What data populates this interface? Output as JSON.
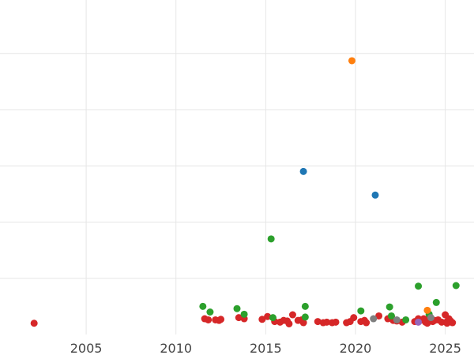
{
  "chart_data": {
    "type": "scatter",
    "title": "",
    "xlabel": "",
    "ylabel": "",
    "xlim": [
      2000.2,
      2026.6
    ],
    "ylim": [
      -0.2,
      5.75
    ],
    "grid": true,
    "x_ticks": [
      2005,
      2010,
      2015,
      2020,
      2025
    ],
    "x_tick_labels": [
      "2005",
      "2010",
      "2015",
      "2020",
      "2025"
    ],
    "y_ticks": [
      0.8,
      1.8,
      2.8,
      3.8,
      4.8,
      5.8
    ],
    "y_tick_labels": [
      "",
      "",
      "",
      "",
      "",
      ""
    ],
    "colors": {
      "red": "#d62728",
      "green": "#2ca02c",
      "blue": "#1f77b4",
      "orange": "#ff7f0e",
      "gray": "#7f7f7f",
      "purple": "#9467bd"
    },
    "series": [
      {
        "color": "#d62728",
        "points": [
          [
            2002.1,
            0.0
          ],
          [
            2011.6,
            0.08
          ],
          [
            2011.8,
            0.06
          ],
          [
            2012.2,
            0.06
          ],
          [
            2012.4,
            0.05
          ],
          [
            2012.5,
            0.07
          ],
          [
            2013.5,
            0.1
          ],
          [
            2013.8,
            0.08
          ],
          [
            2014.8,
            0.07
          ],
          [
            2015.1,
            0.12
          ],
          [
            2015.5,
            0.03
          ],
          [
            2015.8,
            0.02
          ],
          [
            2016.0,
            0.05
          ],
          [
            2016.2,
            0.04
          ],
          [
            2016.3,
            -0.01
          ],
          [
            2016.5,
            0.15
          ],
          [
            2016.8,
            0.05
          ],
          [
            2017.0,
            0.06
          ],
          [
            2017.1,
            0.01
          ],
          [
            2017.9,
            0.03
          ],
          [
            2018.2,
            0.01
          ],
          [
            2018.4,
            0.02
          ],
          [
            2018.7,
            0.01
          ],
          [
            2018.9,
            0.02
          ],
          [
            2019.5,
            0.01
          ],
          [
            2019.7,
            0.03
          ],
          [
            2019.9,
            0.1
          ],
          [
            2020.3,
            0.03
          ],
          [
            2020.5,
            0.05
          ],
          [
            2020.6,
            0.01
          ],
          [
            2021.3,
            0.13
          ],
          [
            2021.8,
            0.08
          ],
          [
            2022.0,
            0.12
          ],
          [
            2022.1,
            0.05
          ],
          [
            2022.3,
            0.04
          ],
          [
            2022.6,
            0.02
          ],
          [
            2023.3,
            0.03
          ],
          [
            2023.5,
            0.08
          ],
          [
            2023.6,
            0.05
          ],
          [
            2023.8,
            0.08
          ],
          [
            2023.9,
            0.02
          ],
          [
            2024.0,
            0.0
          ],
          [
            2024.1,
            0.1
          ],
          [
            2024.3,
            0.03
          ],
          [
            2024.4,
            0.05
          ],
          [
            2024.6,
            0.06
          ],
          [
            2024.8,
            0.02
          ],
          [
            2025.0,
            0.15
          ],
          [
            2025.1,
            0.03
          ],
          [
            2025.2,
            0.08
          ],
          [
            2025.3,
            0.04
          ],
          [
            2025.4,
            0.01
          ],
          [
            2025.1,
            0.0
          ]
        ]
      },
      {
        "color": "#2ca02c",
        "points": [
          [
            2011.5,
            0.3
          ],
          [
            2011.9,
            0.2
          ],
          [
            2013.4,
            0.26
          ],
          [
            2013.8,
            0.16
          ],
          [
            2015.3,
            1.5
          ],
          [
            2015.4,
            0.1
          ],
          [
            2017.2,
            0.3
          ],
          [
            2017.2,
            0.11
          ],
          [
            2020.3,
            0.22
          ],
          [
            2021.9,
            0.29
          ],
          [
            2022.0,
            0.13
          ],
          [
            2022.8,
            0.06
          ],
          [
            2023.5,
            0.66
          ],
          [
            2024.1,
            0.16
          ],
          [
            2024.5,
            0.37
          ],
          [
            2025.6,
            0.67
          ]
        ]
      },
      {
        "color": "#1f77b4",
        "points": [
          [
            2017.1,
            2.7
          ],
          [
            2021.1,
            2.28
          ]
        ]
      },
      {
        "color": "#ff7f0e",
        "points": [
          [
            2019.8,
            4.67
          ],
          [
            2024.0,
            0.23
          ]
        ]
      },
      {
        "color": "#7f7f7f",
        "points": [
          [
            2021.0,
            0.08
          ],
          [
            2022.3,
            0.06
          ],
          [
            2024.2,
            0.1
          ]
        ]
      },
      {
        "color": "#9467bd",
        "points": [
          [
            2023.5,
            0.02
          ]
        ]
      }
    ]
  }
}
